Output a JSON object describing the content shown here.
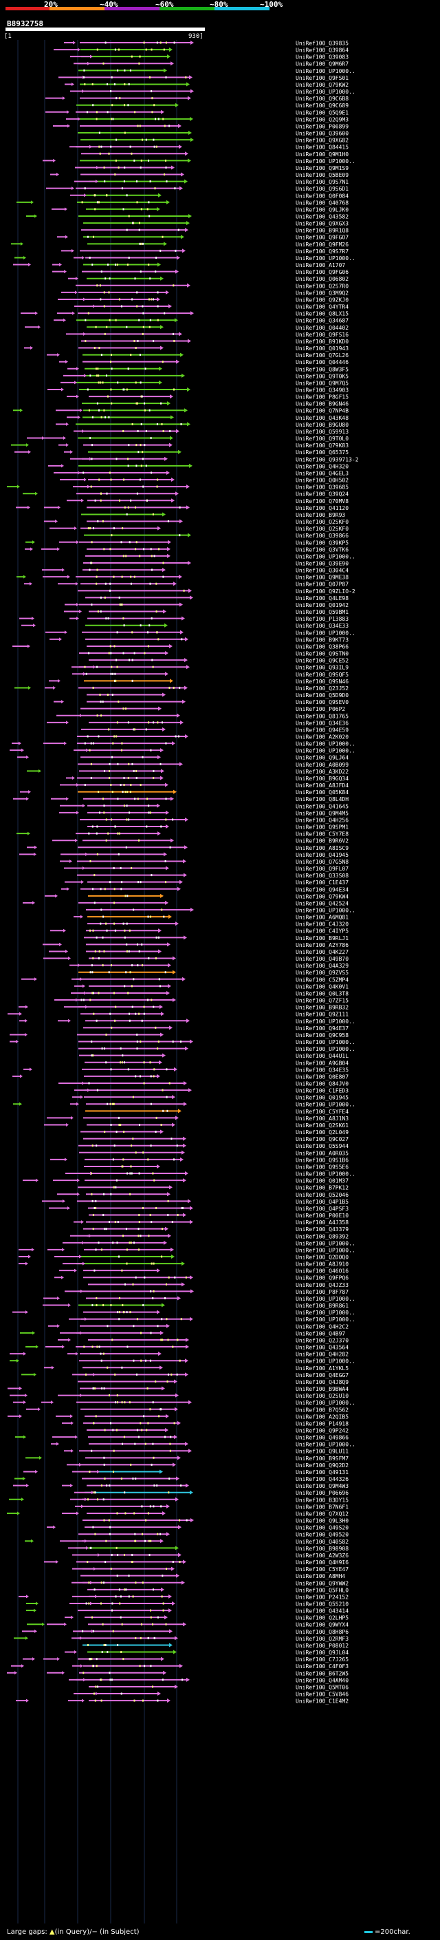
{
  "header": {
    "query_id": "B8932758",
    "range_start": "1",
    "range_end": "930",
    "identity_ticks": [
      "20%",
      "~40%",
      "~60%",
      "~80%",
      "~100%"
    ],
    "identity_colors": [
      "#e02020",
      "#ff8c1a",
      "#a020c0",
      "#18b018",
      "#18c0e0"
    ]
  },
  "legend": {
    "prefix": "Large gaps: ",
    "in_query": "(in Query)",
    "separator": "/",
    "in_subject": "(in Subject)",
    "scale_label": "=200char."
  },
  "hits": [
    "UniRef100_Q39835",
    "UniRef100_Q39864",
    "UniRef100_Q39083",
    "UniRef100_Q9M6R7",
    "UniRef100_UP1000..",
    "UniRef100_Q9FS01",
    "UniRef100_Q79KW2",
    "UniRef100_UP1000..",
    "UniRef100_Q9C6B8",
    "UniRef100_Q9C689",
    "UniRef100_Q5Q9E1",
    "UniRef100_Q2Q9M3",
    "UniRef100_P06899",
    "UniRef100_Q39600",
    "UniRef100_Q9XG82",
    "UniRef100_Q84415",
    "UniRef100_Q9M1H0",
    "UniRef100_UP1000..",
    "UniRef100_Q9M1S9",
    "UniRef100_Q5BE09",
    "UniRef100_Q9S7N1",
    "UniRef100_Q9S6D1",
    "UniRef100_Q0F084",
    "UniRef100_Q40768",
    "UniRef100_Q9LJK0",
    "UniRef100_Q43582",
    "UniRef100_Q9XGX3",
    "UniRef100_B9R1Q8",
    "UniRef100_Q9FGO7",
    "UniRef100_Q9FM26",
    "UniRef100_Q9S7R7",
    "UniRef100_UP1000..",
    "UniRef100_A1707",
    "UniRef100_Q9FG06",
    "UniRef100_Q06802",
    "UniRef100_Q2S7R0",
    "UniRef100_Q3M9Q2",
    "UniRef100_Q9ZKJ0",
    "UniRef100_Q4YTR4",
    "UniRef100_Q8LX15",
    "UniRef100_Q34687",
    "UniRef100_Q04402",
    "UniRef100_Q9FS16",
    "UniRef100_B91KD0",
    "UniRef100_Q01943",
    "UniRef100_Q7GL26",
    "UniRef100_Q04446",
    "UniRef100_Q8W3F5",
    "UniRef100_Q9T0K5",
    "UniRef100_Q9M7Q5",
    "UniRef100_Q34903",
    "UniRef100_P8GF15",
    "UniRef100_B9GN46",
    "UniRef100_Q7NP4B",
    "UniRef100_Q43K48",
    "UniRef100_B9GU80",
    "UniRef100_Q59913",
    "UniRef100_Q9T0L0",
    "UniRef100_Q79K83",
    "UniRef100_Q65375",
    "UniRef100_Q939713-2",
    "UniRef100_Q4H320",
    "UniRef100_Q4GEL3",
    "UniRef100_Q0H502",
    "UniRef100_Q39685",
    "UniRef100_Q39Q24",
    "UniRef100_Q70MV8",
    "UniRef100_Q41120",
    "UniRef100_B9R93",
    "UniRef100_Q2SKF0",
    "UniRef100_Q2SKF0",
    "UniRef100_Q39866",
    "UniRef100_Q39KP5",
    "UniRef100_Q3VTK6",
    "UniRef100_UP1000..",
    "UniRef100_Q39E90",
    "UniRef100_Q304C4",
    "UniRef100_Q9ME38",
    "UniRef100_Q07P87",
    "UniRef100_Q9ZLIO-2",
    "UniRef100_Q4LE98",
    "UniRef100_Q01942",
    "UniRef100_Q59BM1",
    "UniRef100_P13883",
    "UniRef100_Q34E33",
    "UniRef100_UP1000..",
    "UniRef100_B9KT73",
    "UniRef100_Q38P66",
    "UniRef100_Q9STN0",
    "UniRef100_Q9CE52",
    "UniRef100_Q93IL9",
    "UniRef100_Q9SQF5",
    "UniRef100_Q9SN46",
    "UniRef100_Q23J52",
    "UniRef100_Q5D9D0",
    "UniRef100_Q9SEV0",
    "UniRef100_P06P2",
    "UniRef100_Q81765",
    "UniRef100_Q34E36",
    "UniRef100_Q94E59",
    "UniRef100_A2K020",
    "UniRef100_UP1000..",
    "UniRef100_UP1000..",
    "UniRef100_Q9LJ64",
    "UniRef100_A0B099",
    "UniRef100_A3KD22",
    "UniRef100_B9GQ34",
    "UniRef100_A8JFD4",
    "UniRef100_Q05K84",
    "UniRef100_Q8L4DH",
    "UniRef100_Q41645",
    "UniRef100_Q9M4M5",
    "UniRef100_Q4H256",
    "UniRef100_Q9SPM1",
    "UniRef100_C5Y7E8",
    "UniRef100_B9R6V2",
    "UniRef100_A8ISC9",
    "UniRef100_Q41945",
    "UniRef100_Q7G5N8",
    "UniRef100_Q9FL07",
    "UniRef100_Q33S08",
    "UniRef100_C1E437",
    "UniRef100_Q94E34",
    "UniRef100_Q79KW4",
    "UniRef100_Q42524",
    "UniRef100_UP1000..",
    "UniRef100_A6MQ81",
    "UniRef100_C4J320",
    "UniRef100_C4IYP5",
    "UniRef100_B9RLJ1",
    "UniRef100_A2Y786",
    "UniRef100_Q4K227",
    "UniRef100_Q49B70",
    "UniRef100_Q4A329",
    "UniRef100_Q9ZVS5",
    "UniRef100_C5ZMP4",
    "UniRef100_Q4K0V1",
    "UniRef100_Q0L3T8",
    "UniRef100_Q7ZF15",
    "UniRef100_B9RB32",
    "UniRef100_Q9Z111",
    "UniRef100_UP1000..",
    "UniRef100_Q94E37",
    "UniRef100_Q9C958",
    "UniRef100_UP1000..",
    "UniRef100_UP1000..",
    "UniRef100_Q44U1L",
    "UniRef100_A9GB04",
    "UniRef100_Q34E35",
    "UniRef100_Q0E807",
    "UniRef100_Q84JV0",
    "UniRef100_C1FED3",
    "UniRef100_Q01945",
    "UniRef100_UP1000..",
    "UniRef100_C5YFE4",
    "UniRef100_A8J1N3",
    "UniRef100_Q2SK61",
    "UniRef100_Q2L049",
    "UniRef100_Q9C027",
    "UniRef100_Q5S944",
    "UniRef100_A0R035",
    "UniRef100_Q9S1B6",
    "UniRef100_Q9S5E6",
    "UniRef100_UP1000..",
    "UniRef100_Q01M37",
    "UniRef100_B7PK12",
    "UniRef100_Q52046",
    "UniRef100_Q4P1B5",
    "UniRef100_Q4PSF3",
    "UniRef100_P00E10",
    "UniRef100_A4J358",
    "UniRef100_Q43379",
    "UniRef100_Q89392",
    "UniRef100_UP1000..",
    "UniRef100_UP1000..",
    "UniRef100_Q2D0Q0",
    "UniRef100_A8J910",
    "UniRef100_Q46O16",
    "UniRef100_Q9FPQ6",
    "UniRef100_Q4JZ33",
    "UniRef100_P8F787",
    "UniRef100_UP1000..",
    "UniRef100_B9R861",
    "UniRef100_UP1000..",
    "UniRef100_UP1000..",
    "UniRef100_Q4H2C2",
    "UniRef100_Q4B97",
    "UniRef100_Q2J370",
    "UniRef100_Q43564",
    "UniRef100_Q4H282",
    "UniRef100_UP1000..",
    "UniRef100_A1YKL5",
    "UniRef100_Q4EGG7",
    "UniRef100_Q4J8Q9",
    "UniRef100_B9BWA4",
    "UniRef100_Q2SU10",
    "UniRef100_UP1000..",
    "UniRef100_B7Q562",
    "UniRef100_A2QIB5",
    "UniRef100_P14918",
    "UniRef100_Q9P242",
    "UniRef100_Q49866",
    "UniRef100_UP1000..",
    "UniRef100_Q9LU11",
    "UniRef100_B9SFM7",
    "UniRef100_Q9Q2D2",
    "UniRef100_Q49131",
    "UniRef100_Q44326",
    "UniRef100_Q9M4W3",
    "UniRef100_P06696",
    "UniRef100_B3DY15",
    "UniRef100_B7N6F1",
    "UniRef100_Q7XQ12",
    "UniRef100_Q9L3H0",
    "UniRef100_Q49S20",
    "UniRef100_Q49520",
    "UniRef100_Q40S82",
    "UniRef100_B98908",
    "UniRef100_A2W3Z6",
    "UniRef100_Q4H9I6",
    "UniRef100_C5YE47",
    "UniRef100_A8MH4",
    "UniRef100_Q9YWW2",
    "UniRef100_Q5FHL0",
    "UniRef100_P24152",
    "UniRef100_Q5S210",
    "UniRef100_Q43414",
    "UniRef100_Q2LHP5",
    "UniRef100_Q9WYX4",
    "UniRef100_Q8H8P6",
    "UniRef100_Q2RMF3",
    "UniRef100_P08012",
    "UniRef100_Q9JL04",
    "UniRef100_C7J265",
    "UniRef100_C4F0F3",
    "UniRef100_B6T2W5",
    "UniRef100_Q4AM40",
    "UniRef100_Q5MT06",
    "UniRef100_C5V846",
    "UniRef100_C1E4M2"
  ]
}
